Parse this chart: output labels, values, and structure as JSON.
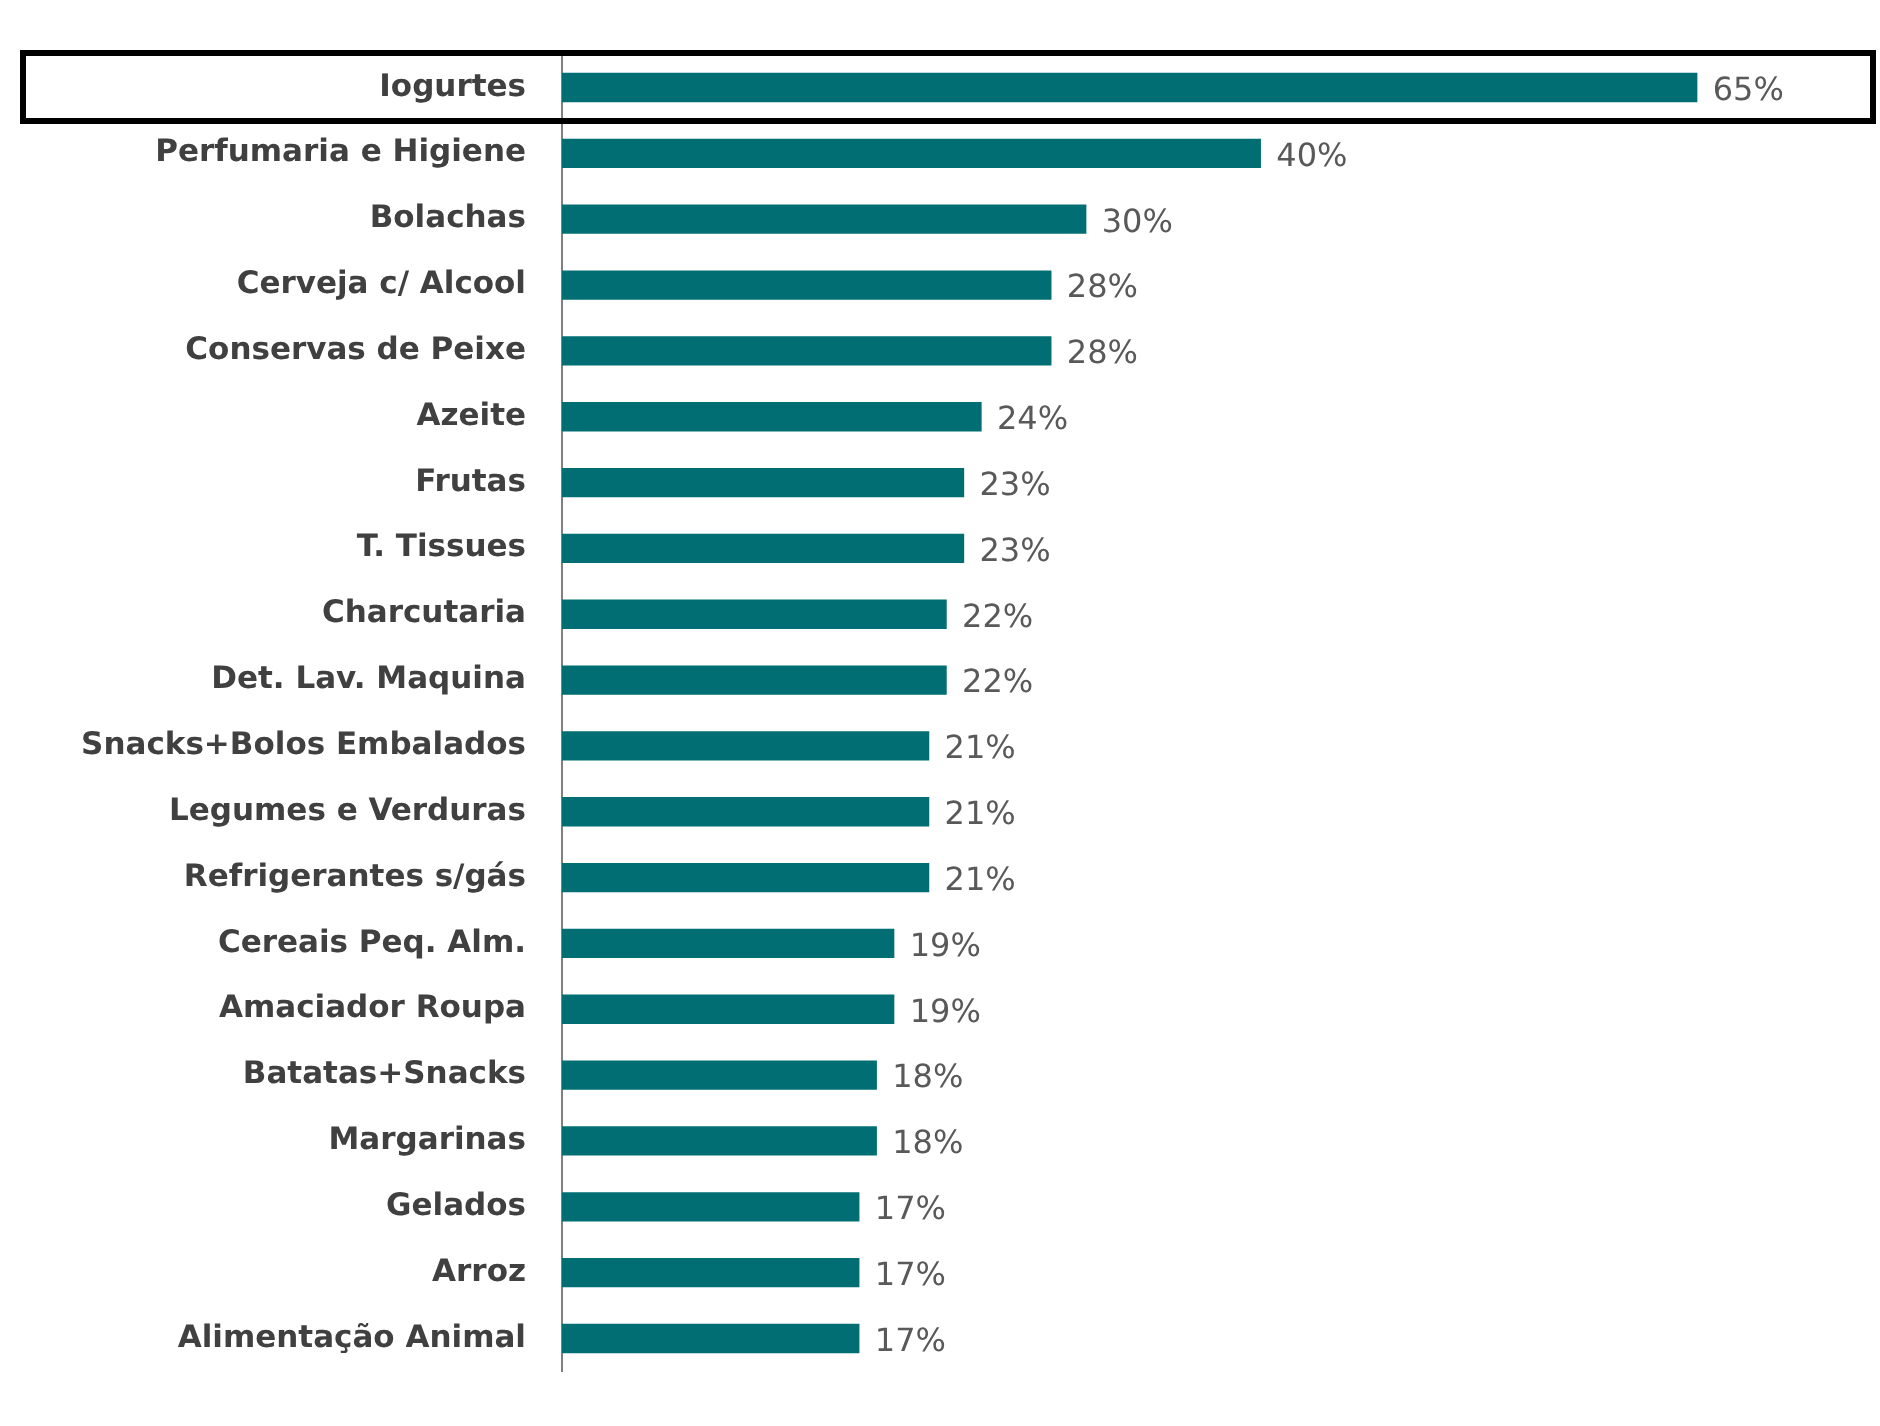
{
  "chart_data": {
    "type": "bar",
    "orientation": "horizontal",
    "categories": [
      "Iogurtes",
      "Perfumaria e Higiene",
      "Bolachas",
      "Cerveja c/ Alcool",
      "Conservas de Peixe",
      "Azeite",
      "Frutas",
      "T. Tissues",
      "Charcutaria",
      "Det. Lav. Maquina",
      "Snacks+Bolos Embalados",
      "Legumes e Verduras",
      "Refrigerantes s/gás",
      "Cereais Peq. Alm.",
      "Amaciador Roupa",
      "Batatas+Snacks",
      "Margarinas",
      "Gelados",
      "Arroz",
      "Alimentação Animal"
    ],
    "values": [
      65,
      40,
      30,
      28,
      28,
      24,
      23,
      23,
      22,
      22,
      21,
      21,
      21,
      19,
      19,
      18,
      18,
      17,
      17,
      17
    ],
    "value_labels": [
      "65%",
      "40%",
      "30%",
      "28%",
      "28%",
      "24%",
      "23%",
      "23%",
      "22%",
      "22%",
      "21%",
      "21%",
      "21%",
      "19%",
      "19%",
      "18%",
      "18%",
      "17%",
      "17%",
      "17%"
    ],
    "color": "#006e72",
    "grid": false,
    "legend": false
  }
}
